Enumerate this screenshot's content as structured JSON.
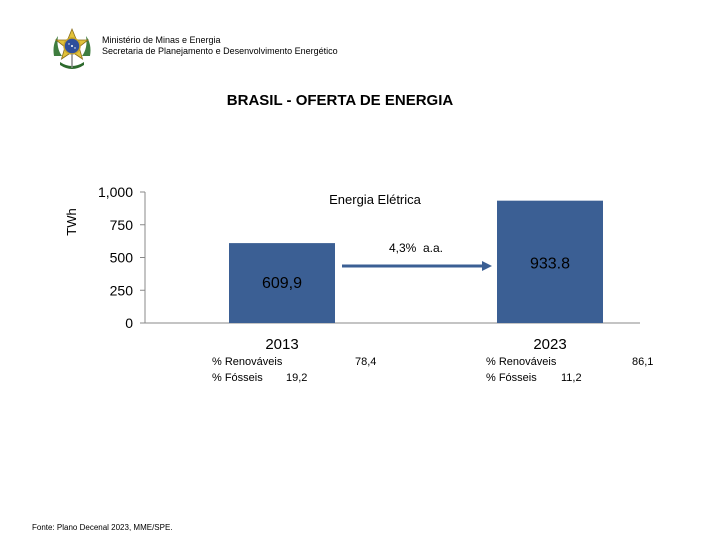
{
  "header": {
    "ministry": "Ministério de Minas e Energia",
    "secretariat": "Secretaria de Planejamento e Desenvolvimento Energético",
    "emblem_icon": "brazil-coat-of-arms-icon"
  },
  "title": "BRASIL - OFERTA DE ENERGIA",
  "chart_data": {
    "type": "bar",
    "title": "Energia Elétrica",
    "ylabel": "TWh",
    "xlabel": "",
    "categories": [
      "2013",
      "2023"
    ],
    "values": [
      609.9,
      933.8
    ],
    "value_labels": [
      "609,9",
      "933.8"
    ],
    "ylim": [
      0,
      1000
    ],
    "yticks": [
      0,
      250,
      500,
      750,
      1000
    ],
    "ytick_labels": [
      "0",
      "250",
      "500",
      "750",
      "1,000"
    ],
    "bar_color": "#3b5f94",
    "grid": false,
    "annotation": "4,3%  a.a."
  },
  "notes": [
    {
      "renewable_label": "% Renováveis",
      "renewable_value": "78,4",
      "fossil_label": "% Fósseis",
      "fossil_value": "19,2"
    },
    {
      "renewable_label": "% Renováveis",
      "renewable_value": "86,1",
      "fossil_label": "% Fósseis",
      "fossil_value": "11,2"
    }
  ],
  "source": "Fonte: Plano Decenal 2023, MME/SPE."
}
